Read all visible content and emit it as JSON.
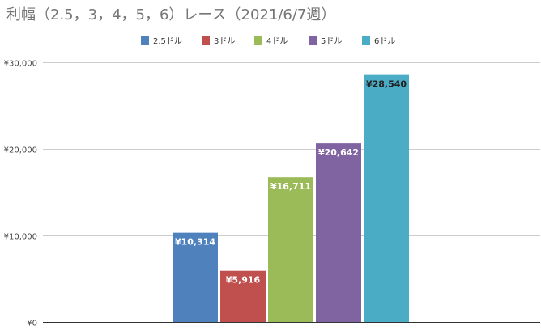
{
  "chart_data": {
    "type": "bar",
    "title": "利幅（2.5，3，4，5，6）レース（2021/6/7週）",
    "xlabel": "",
    "ylabel": "",
    "ylim": [
      0,
      30000
    ],
    "yticks": [
      0,
      10000,
      20000,
      30000
    ],
    "ytick_labels": [
      "¥0",
      "¥10,000",
      "¥20,000",
      "¥30,000"
    ],
    "grid": true,
    "legend_position": "top",
    "series": [
      {
        "name": "2.5ドル",
        "value": 10314,
        "label": "¥10,314",
        "color": "#4f81bd"
      },
      {
        "name": "3ドル",
        "value": 5916,
        "label": "¥5,916",
        "color": "#c0504d"
      },
      {
        "name": "4ドル",
        "value": 16711,
        "label": "¥16,711",
        "color": "#9bbb59"
      },
      {
        "name": "5ドル",
        "value": 20642,
        "label": "¥20,642",
        "color": "#8064a2"
      },
      {
        "name": "6ドル",
        "value": 28540,
        "label": "¥28,540",
        "color": "#4bacc6"
      }
    ]
  }
}
